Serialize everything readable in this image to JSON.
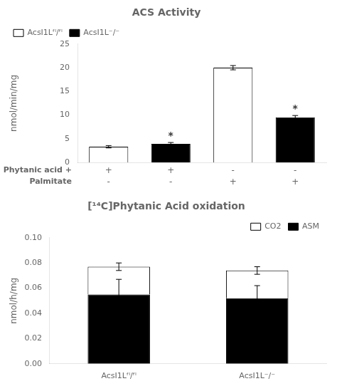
{
  "chart_data": [
    {
      "type": "bar",
      "title": "ACS Activity",
      "y_label": "nmol/min/mg",
      "categories": [
        null,
        null,
        null,
        null
      ],
      "category_rows": [
        {
          "label": "Phytanic acid +",
          "values": [
            "+",
            "+",
            "-",
            "-"
          ]
        },
        {
          "label": "Palmitate",
          "values": [
            "-",
            "-",
            "+",
            "+"
          ]
        }
      ],
      "series": [
        {
          "name": "AcsI1Lᶠˡ/ᶠˡ",
          "color": "white",
          "values": [
            3.3,
            null,
            20.0,
            null
          ],
          "errors": [
            0.25,
            null,
            0.45,
            null
          ]
        },
        {
          "name": "AcsI1L⁻/⁻",
          "color": "black",
          "values": [
            null,
            3.9,
            null,
            9.5
          ],
          "errors": [
            null,
            0.3,
            null,
            0.4
          ],
          "annotations": [
            null,
            "*",
            null,
            "*"
          ]
        }
      ],
      "ylim": [
        0,
        25
      ],
      "yticks": [
        0,
        5,
        10,
        15,
        20,
        25
      ],
      "grid": false,
      "legend": "upper left"
    },
    {
      "type": "bar",
      "title": "[¹⁴C]Phytanic Acid oxidation",
      "y_label": "nmol/h/mg",
      "categories": [
        "AcsI1Lᶠˡ/ᶠˡ",
        "AcsI1L⁻/⁻"
      ],
      "series": [
        {
          "name": "ASM",
          "color": "black",
          "values": [
            0.055,
            0.052
          ],
          "errors": [
            0.012,
            0.01
          ]
        },
        {
          "name": "CO2",
          "color": "white",
          "values": [
            0.022,
            0.022
          ],
          "errors": [
            0.003,
            0.003
          ]
        }
      ],
      "stacked": true,
      "ylim": [
        0,
        0.1
      ],
      "yticks": [
        {
          "value": 0,
          "label": "0.00"
        },
        0.02,
        0.04,
        0.06,
        0.08,
        {
          "value": 0.1,
          "label": "0.10"
        }
      ],
      "grid": false,
      "legend": "upper right"
    }
  ]
}
